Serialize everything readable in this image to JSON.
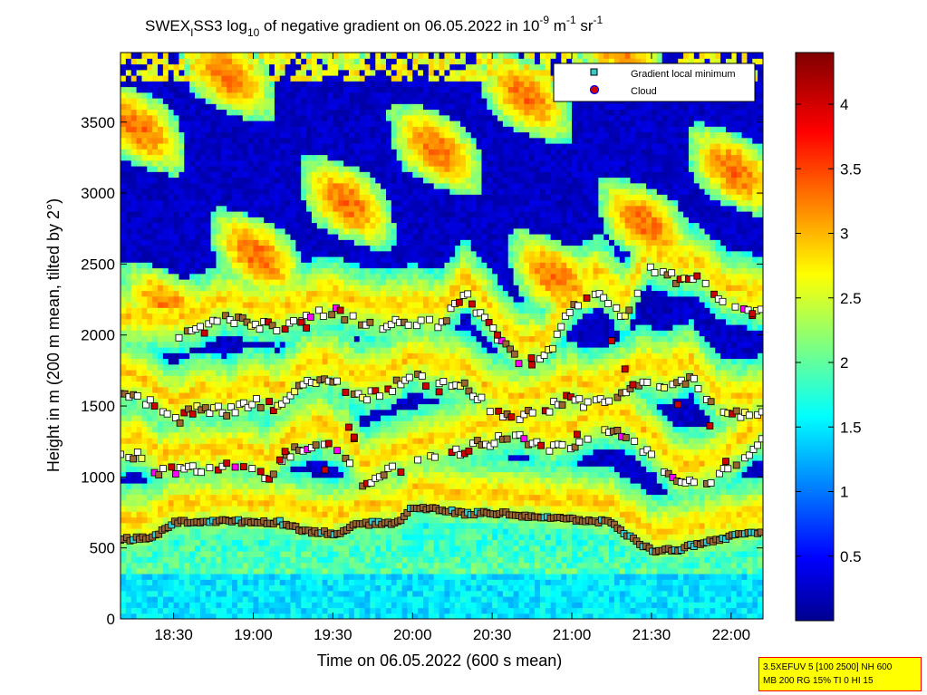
{
  "chart_data": {
    "type": "heatmap",
    "title_main": "SWEX",
    "title_sub1": "I",
    "title_mid": "SS3 log",
    "title_sub2": "10",
    "title_rest": " of negative gradient on 06.05.2022 in 10",
    "title_exp1": "-9",
    "title_unit1": " m",
    "title_exp2": "-1",
    "title_unit2": " sr",
    "title_exp3": "-1",
    "xlabel": "Time on 06.05.2022 (600 s mean)",
    "ylabel": "Height in m (200 m mean, tilted by 2°)",
    "x_range": [
      "18:10",
      "22:12"
    ],
    "xlim_minutes": [
      1090,
      1332
    ],
    "x_ticks": [
      {
        "label": "18:30",
        "minutes": 1110
      },
      {
        "label": "19:00",
        "minutes": 1140
      },
      {
        "label": "19:30",
        "minutes": 1170
      },
      {
        "label": "20:00",
        "minutes": 1200
      },
      {
        "label": "20:30",
        "minutes": 1230
      },
      {
        "label": "21:00",
        "minutes": 1260
      },
      {
        "label": "21:30",
        "minutes": 1290
      },
      {
        "label": "22:00",
        "minutes": 1320
      }
    ],
    "ylim": [
      0,
      3990
    ],
    "y_ticks": [
      {
        "label": "0",
        "value": 0
      },
      {
        "label": "500",
        "value": 500
      },
      {
        "label": "1000",
        "value": 1000
      },
      {
        "label": "1500",
        "value": 1500
      },
      {
        "label": "2000",
        "value": 2000
      },
      {
        "label": "2500",
        "value": 2500
      },
      {
        "label": "3000",
        "value": 3000
      },
      {
        "label": "3500",
        "value": 3500
      }
    ],
    "colorbar": {
      "range": [
        0,
        4.4
      ],
      "colormap": "jet",
      "ticks": [
        {
          "label": "0.5",
          "value": 0.5
        },
        {
          "label": "1",
          "value": 1
        },
        {
          "label": "1.5",
          "value": 1.5
        },
        {
          "label": "2",
          "value": 2
        },
        {
          "label": "2.5",
          "value": 2.5
        },
        {
          "label": "3",
          "value": 3
        },
        {
          "label": "3.5",
          "value": 3.5
        },
        {
          "label": "4",
          "value": 4
        }
      ]
    },
    "legend": {
      "placement": "top-right",
      "entries": [
        {
          "label": "Gradient local minimum",
          "marker": "square",
          "color": "#33cccc"
        },
        {
          "label": "Cloud",
          "marker": "circle",
          "color": "#cc0000",
          "edge": "#0000ff"
        }
      ]
    },
    "marker_fill_colors": [
      "#ffffff",
      "#ffff66",
      "#cc0000",
      "#33cccc",
      "#ff00ff",
      "#996633"
    ],
    "layer_background": {
      "surface": {
        "top": 330,
        "value": 1.3
      },
      "mid": [
        {
          "min": 1090,
          "height": 830
        },
        {
          "min": 1130,
          "height": 950
        },
        {
          "min": 1180,
          "height": 900
        },
        {
          "min": 1230,
          "height": 900
        },
        {
          "min": 1280,
          "height": 850
        },
        {
          "min": 1332,
          "height": 800
        }
      ]
    },
    "layers": [
      {
        "name": "layer-600",
        "points": [
          [
            1090,
            560
          ],
          [
            1102,
            570
          ],
          [
            1110,
            680
          ],
          [
            1125,
            690
          ],
          [
            1150,
            680
          ],
          [
            1160,
            620
          ],
          [
            1172,
            600
          ],
          [
            1180,
            670
          ],
          [
            1195,
            680
          ],
          [
            1200,
            790
          ],
          [
            1210,
            770
          ],
          [
            1220,
            740
          ],
          [
            1230,
            750
          ],
          [
            1240,
            730
          ],
          [
            1260,
            700
          ],
          [
            1275,
            680
          ],
          [
            1280,
            600
          ],
          [
            1290,
            480
          ],
          [
            1300,
            490
          ],
          [
            1310,
            540
          ],
          [
            1320,
            580
          ],
          [
            1332,
            610
          ]
        ]
      },
      {
        "name": "layer-1100",
        "points": [
          [
            1090,
            1130
          ],
          [
            1097,
            1150
          ],
          [
            1105,
            1020
          ],
          [
            1115,
            1060
          ],
          [
            1125,
            1050
          ],
          [
            1135,
            1080
          ],
          [
            1145,
            1000
          ],
          [
            1155,
            1180
          ],
          [
            1165,
            1250
          ],
          [
            1175,
            1150
          ],
          [
            1182,
            940
          ],
          [
            1190,
            1040
          ],
          [
            1200,
            1090
          ],
          [
            1210,
            1140
          ],
          [
            1220,
            1200
          ],
          [
            1230,
            1250
          ],
          [
            1240,
            1300
          ],
          [
            1250,
            1180
          ],
          [
            1260,
            1220
          ],
          [
            1270,
            1330
          ],
          [
            1280,
            1300
          ],
          [
            1290,
            1160
          ],
          [
            1300,
            940
          ],
          [
            1310,
            960
          ],
          [
            1320,
            1080
          ],
          [
            1332,
            1270
          ]
        ]
      },
      {
        "name": "layer-1600",
        "points": [
          [
            1090,
            1600
          ],
          [
            1097,
            1580
          ],
          [
            1110,
            1390
          ],
          [
            1120,
            1490
          ],
          [
            1130,
            1450
          ],
          [
            1140,
            1530
          ],
          [
            1150,
            1490
          ],
          [
            1160,
            1680
          ],
          [
            1170,
            1680
          ],
          [
            1180,
            1560
          ],
          [
            1190,
            1600
          ],
          [
            1200,
            1720
          ],
          [
            1210,
            1670
          ],
          [
            1220,
            1640
          ],
          [
            1230,
            1470
          ],
          [
            1240,
            1430
          ],
          [
            1250,
            1470
          ],
          [
            1260,
            1570
          ],
          [
            1265,
            1510
          ],
          [
            1275,
            1540
          ],
          [
            1285,
            1670
          ],
          [
            1295,
            1640
          ],
          [
            1305,
            1700
          ],
          [
            1315,
            1460
          ],
          [
            1325,
            1420
          ],
          [
            1332,
            1470
          ]
        ]
      },
      {
        "name": "layer-2100",
        "points": [
          [
            1112,
            2000
          ],
          [
            1120,
            2030
          ],
          [
            1130,
            2130
          ],
          [
            1140,
            2070
          ],
          [
            1150,
            2050
          ],
          [
            1160,
            2120
          ],
          [
            1170,
            2170
          ],
          [
            1180,
            2090
          ],
          [
            1190,
            2060
          ],
          [
            1200,
            2100
          ],
          [
            1210,
            2060
          ],
          [
            1220,
            2280
          ],
          [
            1230,
            2040
          ],
          [
            1240,
            1820
          ],
          [
            1250,
            1830
          ],
          [
            1260,
            2200
          ],
          [
            1270,
            2320
          ],
          [
            1280,
            2110
          ],
          [
            1288,
            2470
          ],
          [
            1298,
            2400
          ],
          [
            1308,
            2380
          ],
          [
            1318,
            2200
          ],
          [
            1332,
            2160
          ]
        ]
      }
    ],
    "cloud_markers": [
      [
        1150,
        1120
      ],
      [
        1152,
        1180
      ],
      [
        1176,
        1350
      ],
      [
        1178,
        1270
      ],
      [
        1158,
        2090
      ],
      [
        1160,
        2050
      ],
      [
        1178,
        1280
      ],
      [
        1167,
        1050
      ],
      [
        1205,
        1640
      ],
      [
        1210,
        1600
      ],
      [
        1232,
        2000
      ],
      [
        1245,
        1790
      ],
      [
        1262,
        1300
      ],
      [
        1280,
        1760
      ],
      [
        1283,
        1650
      ],
      [
        1300,
        1510
      ],
      [
        1312,
        1360
      ],
      [
        1318,
        1110
      ],
      [
        1328,
        2150
      ],
      [
        1275,
        1960
      ]
    ]
  },
  "info_box": {
    "line1": "3.5XEFUV 5 [100 2500] NH 600",
    "line2": "MB 200 RG 15% TI 0 HI 15"
  }
}
